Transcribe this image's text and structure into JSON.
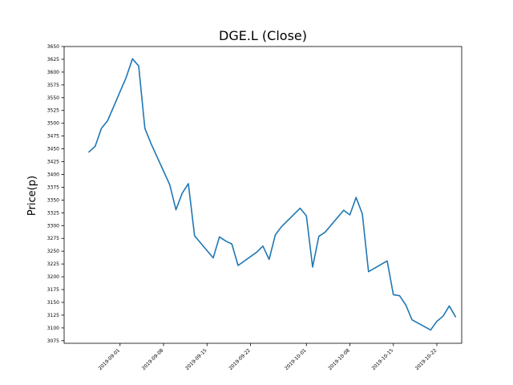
{
  "chart_data": {
    "type": "line",
    "title": "DGE.L (Close)",
    "xlabel": "",
    "ylabel": "Price(p)",
    "grid": false,
    "line_color": "#1f77b4",
    "xlim": [
      "2019-08-23",
      "2019-10-26"
    ],
    "ylim": [
      3070,
      3650
    ],
    "yticks": [
      3075,
      3100,
      3125,
      3150,
      3175,
      3200,
      3225,
      3250,
      3275,
      3300,
      3325,
      3350,
      3375,
      3400,
      3425,
      3450,
      3475,
      3500,
      3525,
      3550,
      3575,
      3600,
      3625,
      3650
    ],
    "xticks": [
      "2019-09-01",
      "2019-09-08",
      "2019-09-15",
      "2019-09-22",
      "2019-10-01",
      "2019-10-08",
      "2019-10-15",
      "2019-10-22"
    ],
    "series": [
      {
        "x": [
          "2019-08-27",
          "2019-08-28",
          "2019-08-29",
          "2019-08-30",
          "2019-09-02",
          "2019-09-03",
          "2019-09-04",
          "2019-09-05",
          "2019-09-06",
          "2019-09-09",
          "2019-09-10",
          "2019-09-11",
          "2019-09-12",
          "2019-09-13",
          "2019-09-16",
          "2019-09-17",
          "2019-09-18",
          "2019-09-19",
          "2019-09-20",
          "2019-09-23",
          "2019-09-24",
          "2019-09-25",
          "2019-09-26",
          "2019-09-27",
          "2019-09-30",
          "2019-10-01",
          "2019-10-02",
          "2019-10-03",
          "2019-10-04",
          "2019-10-07",
          "2019-10-08",
          "2019-10-09",
          "2019-10-10",
          "2019-10-11",
          "2019-10-14",
          "2019-10-15",
          "2019-10-16",
          "2019-10-17",
          "2019-10-18",
          "2019-10-21",
          "2019-10-22",
          "2019-10-23",
          "2019-10-24",
          "2019-10-25"
        ],
        "y": [
          3444,
          3455,
          3490,
          3505,
          3590,
          3626,
          3612,
          3490,
          3460,
          3380,
          3331,
          3363,
          3382,
          3280,
          3237,
          3278,
          3270,
          3264,
          3222,
          3248,
          3260,
          3234,
          3282,
          3298,
          3334,
          3319,
          3219,
          3279,
          3287,
          3330,
          3321,
          3355,
          3323,
          3210,
          3231,
          3165,
          3163,
          3145,
          3116,
          3096,
          3113,
          3123,
          3143,
          3122
        ]
      }
    ]
  }
}
